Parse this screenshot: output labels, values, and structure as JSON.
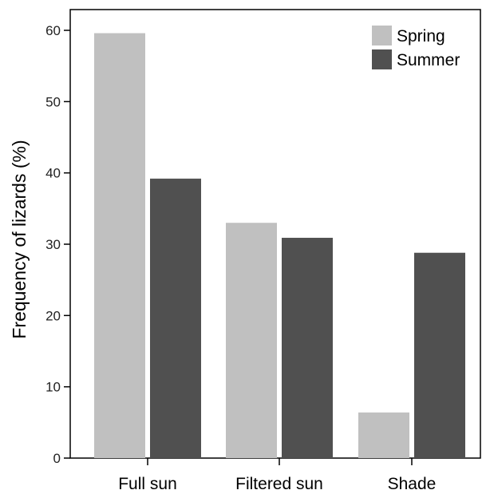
{
  "chart_data": {
    "type": "bar",
    "title": "",
    "xlabel": "",
    "ylabel": "Frequency of lizards (%)",
    "categories": [
      "Full sun",
      "Filtered sun",
      "Shade"
    ],
    "series": [
      {
        "name": "Spring",
        "color": "#c0c0c0",
        "values": [
          59.6,
          33.0,
          6.4
        ]
      },
      {
        "name": "Summer",
        "color": "#505050",
        "values": [
          39.2,
          30.9,
          28.8
        ]
      }
    ],
    "ylim": [
      0,
      60
    ],
    "yticks": [
      0,
      10,
      20,
      30,
      40,
      50,
      60
    ],
    "grid": false,
    "legend_position": "top-right"
  }
}
